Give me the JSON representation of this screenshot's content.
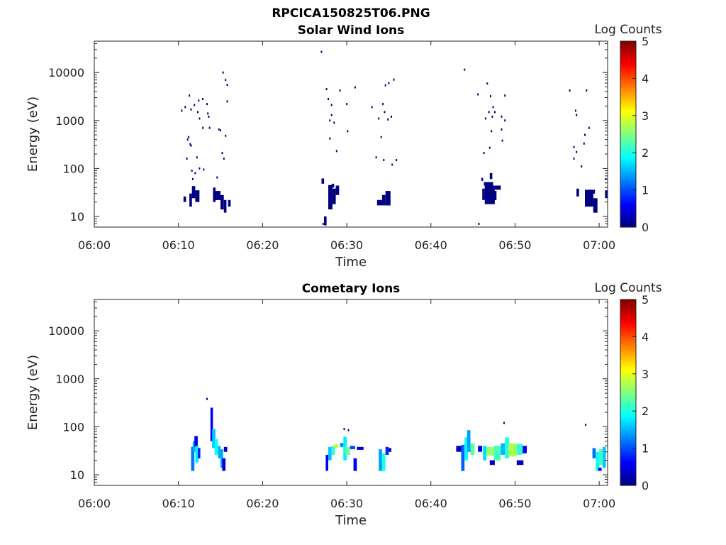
{
  "chart_data": [
    {
      "type": "heatmap",
      "figure_title": "RPCICA150825T06.PNG",
      "title": "Solar Wind Ions",
      "xlabel": "Time",
      "ylabel": "Energy (eV)",
      "x_ticks": [
        "06:00",
        "06:10",
        "06:20",
        "06:30",
        "06:40",
        "06:50",
        "07:00"
      ],
      "xlim": [
        "06:00",
        "07:01"
      ],
      "y_scale": "log",
      "y_ticks": [
        "10",
        "100",
        "1000",
        "10000"
      ],
      "ylim": [
        6,
        45000
      ],
      "colorbar": {
        "label": "Log Counts",
        "ticks": [
          "0",
          "1",
          "2",
          "3",
          "4",
          "5"
        ],
        "range": [
          0,
          5
        ],
        "colormap": "jet"
      },
      "scatter_points": [
        [
          10.4,
          1600,
          0
        ],
        [
          10.8,
          1900,
          0
        ],
        [
          11.3,
          3300,
          0
        ],
        [
          11.5,
          1700,
          0
        ],
        [
          11.9,
          2100,
          0
        ],
        [
          12.4,
          2600,
          0
        ],
        [
          12.3,
          1500,
          0
        ],
        [
          12.5,
          1100,
          0
        ],
        [
          12.9,
          2800,
          0
        ],
        [
          13.4,
          2200,
          0
        ],
        [
          13.5,
          1400,
          0
        ],
        [
          13.6,
          1200,
          0
        ],
        [
          12.9,
          700,
          0
        ],
        [
          11.1,
          400,
          0
        ],
        [
          11.4,
          320,
          0
        ],
        [
          11.5,
          300,
          0
        ],
        [
          11.2,
          450,
          0
        ],
        [
          11.0,
          160,
          0
        ],
        [
          12.2,
          170,
          0
        ],
        [
          11.7,
          60,
          0
        ],
        [
          11.6,
          90,
          0
        ],
        [
          12.0,
          80,
          0
        ],
        [
          12.5,
          100,
          0
        ],
        [
          13.0,
          95,
          0
        ],
        [
          13.7,
          700,
          0
        ],
        [
          14.8,
          650,
          0
        ],
        [
          15.0,
          620,
          0
        ],
        [
          15.2,
          210,
          0
        ],
        [
          15.4,
          160,
          0
        ],
        [
          15.3,
          10000,
          0
        ],
        [
          15.6,
          7000,
          0
        ],
        [
          15.8,
          5500,
          0
        ],
        [
          15.8,
          2500,
          0
        ],
        [
          15.6,
          480,
          0
        ],
        [
          14.6,
          65,
          0
        ],
        [
          27.0,
          27000,
          0
        ],
        [
          27.6,
          4500,
          0
        ],
        [
          27.8,
          2800,
          0
        ],
        [
          28.2,
          1300,
          0
        ],
        [
          28.0,
          1000,
          0
        ],
        [
          28.5,
          900,
          0
        ],
        [
          28.0,
          420,
          0
        ],
        [
          28.8,
          230,
          0
        ],
        [
          29.2,
          4200,
          0
        ],
        [
          30.0,
          2200,
          0
        ],
        [
          30.1,
          600,
          0
        ],
        [
          31.0,
          4900,
          0
        ],
        [
          28.2,
          2100,
          0
        ],
        [
          33.0,
          1900,
          0
        ],
        [
          34.6,
          5400,
          0
        ],
        [
          35.0,
          6000,
          0
        ],
        [
          35.6,
          7100,
          0
        ],
        [
          34.3,
          2200,
          0
        ],
        [
          34.5,
          1500,
          0
        ],
        [
          34.1,
          450,
          0
        ],
        [
          33.5,
          170,
          0
        ],
        [
          34.4,
          150,
          0
        ],
        [
          35.9,
          150,
          0
        ],
        [
          35.4,
          120,
          0
        ],
        [
          33.8,
          1100,
          0
        ],
        [
          35.3,
          1200,
          0
        ],
        [
          34.9,
          1050,
          0
        ],
        [
          44.0,
          11500,
          0
        ],
        [
          46.7,
          5900,
          0
        ],
        [
          45.6,
          3500,
          0
        ],
        [
          47.1,
          3200,
          0
        ],
        [
          48.8,
          3300,
          0
        ],
        [
          47.4,
          1900,
          0
        ],
        [
          46.9,
          1500,
          0
        ],
        [
          47.6,
          1500,
          0
        ],
        [
          46.5,
          1100,
          0
        ],
        [
          47.3,
          1200,
          0
        ],
        [
          48.4,
          1200,
          0
        ],
        [
          48.8,
          1000,
          0
        ],
        [
          47.2,
          600,
          0
        ],
        [
          48.4,
          650,
          0
        ],
        [
          48.5,
          380,
          0
        ],
        [
          46.3,
          210,
          0
        ],
        [
          47.0,
          270,
          0
        ],
        [
          56.5,
          4200,
          0
        ],
        [
          58.5,
          4200,
          0
        ],
        [
          57.2,
          1600,
          0
        ],
        [
          57.3,
          1300,
          0
        ],
        [
          58.8,
          700,
          0
        ],
        [
          58.3,
          500,
          0
        ],
        [
          57.0,
          280,
          0
        ],
        [
          57.3,
          220,
          0
        ],
        [
          58.2,
          330,
          0
        ],
        [
          57.0,
          160,
          0
        ],
        [
          57.9,
          110,
          0
        ],
        [
          60.8,
          60,
          0
        ],
        [
          45.7,
          7,
          0
        ],
        [
          27.2,
          7,
          0
        ]
      ],
      "blocks": [
        [
          10.6,
          10.9,
          20,
          26,
          0
        ],
        [
          11.3,
          11.6,
          16,
          30,
          0
        ],
        [
          11.6,
          12.0,
          24,
          43,
          0
        ],
        [
          12.0,
          12.5,
          20,
          35,
          0
        ],
        [
          14.1,
          14.4,
          20,
          40,
          0
        ],
        [
          14.3,
          15.0,
          22,
          34,
          0
        ],
        [
          15.0,
          15.4,
          14,
          28,
          0
        ],
        [
          15.4,
          15.7,
          12,
          22,
          0
        ],
        [
          15.9,
          16.2,
          16,
          22,
          0
        ],
        [
          27.8,
          28.3,
          14,
          45,
          0
        ],
        [
          28.3,
          28.7,
          18,
          38,
          0
        ],
        [
          28.7,
          29.1,
          28,
          44,
          0
        ],
        [
          28.2,
          28.5,
          40,
          48,
          0
        ],
        [
          27.0,
          27.3,
          48,
          62,
          0
        ],
        [
          27.3,
          27.6,
          6.5,
          10,
          0
        ],
        [
          33.6,
          34.6,
          17,
          22,
          0
        ],
        [
          34.6,
          35.2,
          17,
          34,
          0
        ],
        [
          34.2,
          34.6,
          22,
          28,
          0
        ],
        [
          46.1,
          46.4,
          22,
          38,
          0
        ],
        [
          46.4,
          47.6,
          18,
          44,
          0
        ],
        [
          47.4,
          47.8,
          22,
          34,
          0
        ],
        [
          47.6,
          48.3,
          36,
          44,
          0
        ],
        [
          46.3,
          47.4,
          44,
          52,
          0
        ],
        [
          46.0,
          46.2,
          55,
          64,
          0
        ],
        [
          47.0,
          47.3,
          60,
          80,
          0
        ],
        [
          58.3,
          59.3,
          16,
          36,
          0
        ],
        [
          59.3,
          59.8,
          12,
          24,
          0
        ],
        [
          58.8,
          59.5,
          30,
          36,
          0
        ],
        [
          57.3,
          57.6,
          26,
          38,
          0
        ],
        [
          60.7,
          61.0,
          24,
          35,
          0
        ]
      ]
    },
    {
      "type": "heatmap",
      "title": "Cometary Ions",
      "xlabel": "Time",
      "ylabel": "Energy (eV)",
      "x_ticks": [
        "06:00",
        "06:10",
        "06:20",
        "06:30",
        "06:40",
        "06:50",
        "07:00"
      ],
      "xlim": [
        "06:00",
        "07:01"
      ],
      "y_scale": "log",
      "y_ticks": [
        "10",
        "100",
        "1000",
        "10000"
      ],
      "ylim": [
        6,
        45000
      ],
      "colorbar": {
        "label": "Log Counts",
        "ticks": [
          "0",
          "1",
          "2",
          "3",
          "4",
          "5"
        ],
        "range": [
          0,
          5
        ],
        "colormap": "jet"
      },
      "scatter_points": [
        [
          13.4,
          380,
          0
        ],
        [
          48.7,
          120,
          0
        ],
        [
          58.4,
          110,
          0
        ],
        [
          29.7,
          90,
          0
        ],
        [
          30.2,
          85,
          0
        ]
      ],
      "blocks": [
        [
          11.5,
          11.9,
          12,
          38,
          1.2
        ],
        [
          11.7,
          12.0,
          30,
          50,
          1.5
        ],
        [
          11.9,
          12.3,
          38,
          64,
          0.5
        ],
        [
          12.0,
          12.4,
          18,
          40,
          1.8
        ],
        [
          12.3,
          12.6,
          22,
          36,
          0.8
        ],
        [
          13.8,
          14.1,
          50,
          250,
          0.6
        ],
        [
          14.0,
          14.4,
          36,
          90,
          1.6
        ],
        [
          14.3,
          14.7,
          26,
          55,
          1.9
        ],
        [
          14.7,
          15.0,
          22,
          40,
          1.5
        ],
        [
          15.0,
          15.3,
          14,
          34,
          1.4
        ],
        [
          15.2,
          15.6,
          12,
          22,
          0.5
        ],
        [
          15.4,
          15.8,
          30,
          38,
          0.3
        ],
        [
          27.5,
          27.8,
          12,
          26,
          0.6
        ],
        [
          27.8,
          28.2,
          20,
          38,
          1.6
        ],
        [
          28.2,
          28.6,
          26,
          40,
          2.1
        ],
        [
          28.5,
          29.0,
          36,
          44,
          2.8
        ],
        [
          29.2,
          29.6,
          38,
          46,
          1.3
        ],
        [
          29.6,
          30.0,
          20,
          62,
          1.8
        ],
        [
          29.8,
          30.4,
          26,
          38,
          2.4
        ],
        [
          30.4,
          31.0,
          34,
          40,
          1.0
        ],
        [
          30.8,
          31.2,
          12,
          22,
          0.5
        ],
        [
          31.2,
          32.0,
          33,
          38,
          0.5
        ],
        [
          33.8,
          34.2,
          12,
          34,
          1.4
        ],
        [
          34.2,
          34.6,
          12,
          28,
          2.0
        ],
        [
          34.6,
          35.0,
          26,
          38,
          0.8
        ],
        [
          35.0,
          35.3,
          30,
          36,
          0.3
        ],
        [
          43.0,
          43.6,
          30,
          40,
          0.4
        ],
        [
          43.6,
          44.0,
          12,
          42,
          1.1
        ],
        [
          44.0,
          44.4,
          20,
          60,
          1.9
        ],
        [
          44.3,
          44.7,
          30,
          85,
          1.4
        ],
        [
          44.7,
          45.2,
          26,
          45,
          2.3
        ],
        [
          45.6,
          46.1,
          30,
          40,
          0.6
        ],
        [
          46.2,
          46.6,
          20,
          40,
          1.7
        ],
        [
          46.6,
          47.5,
          25,
          38,
          2.6
        ],
        [
          47.5,
          48.3,
          20,
          40,
          2.2
        ],
        [
          48.3,
          48.8,
          26,
          45,
          1.5
        ],
        [
          48.8,
          49.3,
          22,
          60,
          2.0
        ],
        [
          49.2,
          50.2,
          24,
          45,
          2.7
        ],
        [
          50.2,
          50.9,
          26,
          44,
          2.1
        ],
        [
          50.9,
          51.4,
          28,
          40,
          0.6
        ],
        [
          50.2,
          51.0,
          16,
          20,
          0.3
        ],
        [
          47.0,
          47.6,
          16,
          20,
          0.3
        ],
        [
          59.2,
          59.6,
          22,
          36,
          1.2
        ],
        [
          59.6,
          60.0,
          12,
          30,
          1.9
        ],
        [
          60.0,
          60.4,
          16,
          34,
          2.2
        ],
        [
          60.4,
          60.8,
          14,
          38,
          1.6
        ],
        [
          59.9,
          60.3,
          12,
          14,
          0.5
        ]
      ]
    }
  ]
}
